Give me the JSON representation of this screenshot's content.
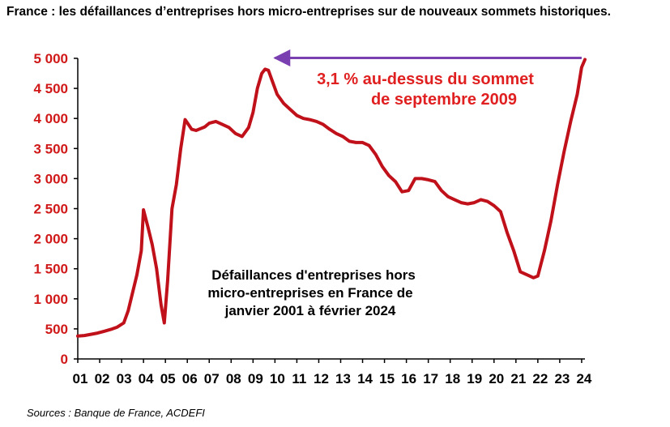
{
  "title": "France : les défaillances d’entreprises hors micro-entreprises sur de nouveaux sommets historiques.",
  "source": "Sources : Banque de France, ACDEFI",
  "colors": {
    "line": "#c0101a",
    "arrow": "#7a3fb0",
    "ytick": "#d01818",
    "anno_red": "#e02020"
  },
  "chart_data": {
    "type": "line",
    "title": "",
    "xlabel": "",
    "ylabel": "",
    "ylim": [
      0,
      5000
    ],
    "xlim": [
      2001,
      2024.15
    ],
    "grid": false,
    "yticks": [
      0,
      500,
      1000,
      1500,
      2000,
      2500,
      3000,
      3500,
      4000,
      4500,
      5000
    ],
    "ytick_labels": [
      "0",
      "500",
      "1 000",
      "1 500",
      "2 000",
      "2 500",
      "3 000",
      "3 500",
      "4 000",
      "4 500",
      "5 000"
    ],
    "xtick_labels": [
      "01",
      "02",
      "03",
      "04",
      "05",
      "06",
      "07",
      "08",
      "09",
      "10",
      "11",
      "12",
      "13",
      "14",
      "15",
      "16",
      "17",
      "18",
      "19",
      "20",
      "21",
      "22",
      "23",
      "24"
    ],
    "annotations": {
      "peak_note_line1": "3,1 % au-dessus du sommet",
      "peak_note_line2": "de septembre 2009",
      "series_note_line1": "Défaillances d'entreprises hors",
      "series_note_line2": "micro-entreprises en France de",
      "series_note_line3": "janvier 2001 à février 2024"
    },
    "series": [
      {
        "x": [
          2001.0,
          2001.3,
          2001.6,
          2001.9,
          2002.2,
          2002.5,
          2002.8,
          2003.1,
          2003.3,
          2003.5,
          2003.7,
          2003.9,
          2004.0,
          2004.2,
          2004.4,
          2004.6,
          2004.8,
          2004.95,
          2005.1,
          2005.3,
          2005.5,
          2005.7,
          2005.9,
          2006.05,
          2006.2,
          2006.4,
          2006.6,
          2006.8,
          2007.0,
          2007.3,
          2007.6,
          2007.9,
          2008.2,
          2008.5,
          2008.8,
          2009.0,
          2009.2,
          2009.4,
          2009.55,
          2009.7,
          2009.9,
          2010.1,
          2010.4,
          2010.7,
          2011.0,
          2011.3,
          2011.6,
          2011.9,
          2012.2,
          2012.5,
          2012.8,
          2013.1,
          2013.4,
          2013.7,
          2014.0,
          2014.3,
          2014.6,
          2014.9,
          2015.2,
          2015.5,
          2015.8,
          2016.1,
          2016.4,
          2016.7,
          2017.0,
          2017.3,
          2017.6,
          2017.9,
          2018.2,
          2018.5,
          2018.8,
          2019.1,
          2019.4,
          2019.7,
          2020.0,
          2020.3,
          2020.6,
          2020.9,
          2021.2,
          2021.5,
          2021.8,
          2022.0,
          2022.3,
          2022.6,
          2022.9,
          2023.2,
          2023.5,
          2023.8,
          2024.0,
          2024.15
        ],
        "y": [
          380,
          390,
          410,
          430,
          460,
          490,
          530,
          600,
          800,
          1100,
          1400,
          1800,
          2480,
          2200,
          1900,
          1500,
          900,
          600,
          1300,
          2500,
          2900,
          3500,
          3980,
          3900,
          3820,
          3800,
          3830,
          3860,
          3920,
          3950,
          3900,
          3850,
          3750,
          3700,
          3850,
          4100,
          4500,
          4750,
          4820,
          4800,
          4600,
          4400,
          4250,
          4150,
          4050,
          4000,
          3980,
          3950,
          3900,
          3820,
          3750,
          3700,
          3620,
          3600,
          3600,
          3550,
          3400,
          3200,
          3050,
          2950,
          2780,
          2800,
          3000,
          3000,
          2980,
          2950,
          2800,
          2700,
          2650,
          2600,
          2580,
          2600,
          2650,
          2620,
          2550,
          2450,
          2100,
          1800,
          1450,
          1400,
          1350,
          1380,
          1800,
          2300,
          2900,
          3450,
          3950,
          4400,
          4850,
          4980
        ]
      }
    ]
  }
}
